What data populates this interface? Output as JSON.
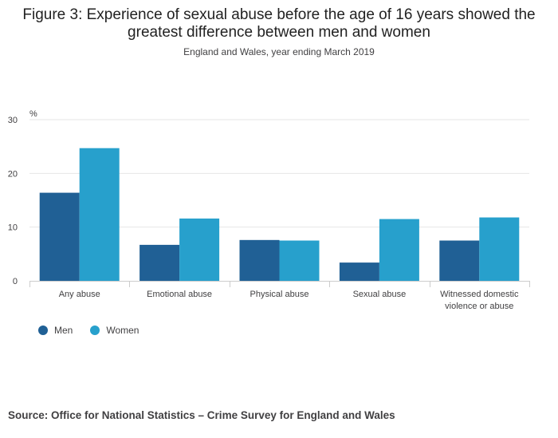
{
  "title_lines": [
    "Figure 3: Experience of sexual abuse before the age of 16 years showed the",
    "greatest difference between men and women"
  ],
  "subtitle": "England and Wales, year ending March 2019",
  "source": "Source: Office for National Statistics – Crime Survey for England and Wales",
  "colors": {
    "men": "#206095",
    "women": "#27a0cc",
    "grid": "#e6e6e6",
    "axis": "#cccccc"
  },
  "chart_data": {
    "type": "bar",
    "ylabel": "%",
    "ylim": [
      0,
      30
    ],
    "yticks": [
      "0",
      "10",
      "20",
      "30"
    ],
    "categories": [
      [
        "Any abuse"
      ],
      [
        "Emotional abuse"
      ],
      [
        "Physical abuse"
      ],
      [
        "Sexual abuse"
      ],
      [
        "Witnessed domestic",
        "violence or abuse"
      ]
    ],
    "series": [
      {
        "name": "Men",
        "values": [
          16.4,
          6.7,
          7.6,
          3.4,
          7.5
        ]
      },
      {
        "name": "Women",
        "values": [
          24.7,
          11.6,
          7.5,
          11.5,
          11.8
        ]
      }
    ],
    "grid": true,
    "legend_position": "bottom-left"
  }
}
